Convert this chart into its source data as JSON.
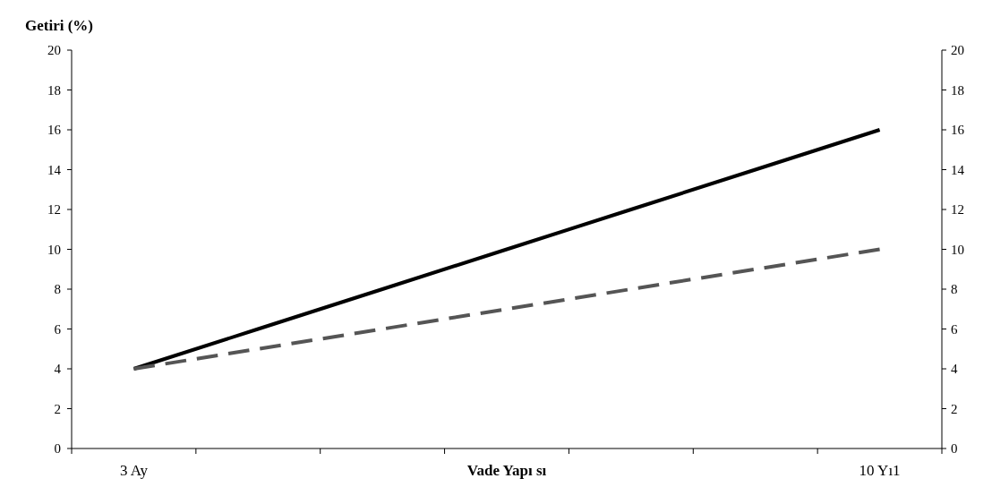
{
  "chart_data": {
    "type": "line",
    "ylabel": "Getiri (%)",
    "xlabel": "Vade Yapı sı",
    "categories": [
      "3 Ay",
      null,
      null,
      null,
      null,
      null,
      "10 Yı1"
    ],
    "series": [
      {
        "color": "#000000",
        "line_style": "solid",
        "values": [
          4,
          6,
          8,
          10,
          12,
          14,
          16
        ]
      },
      {
        "color": "#555555",
        "line_style": "dashed",
        "values": [
          4,
          5,
          6,
          7,
          8,
          9,
          10
        ]
      }
    ],
    "ylim": [
      0,
      20
    ],
    "yticks": [
      0,
      2,
      4,
      6,
      8,
      10,
      12,
      14,
      16,
      18,
      20
    ],
    "y2lim": [
      0,
      20
    ],
    "y2ticks": [
      0,
      2,
      4,
      6,
      8,
      10,
      12,
      14,
      16,
      18,
      20
    ],
    "grid": false
  }
}
